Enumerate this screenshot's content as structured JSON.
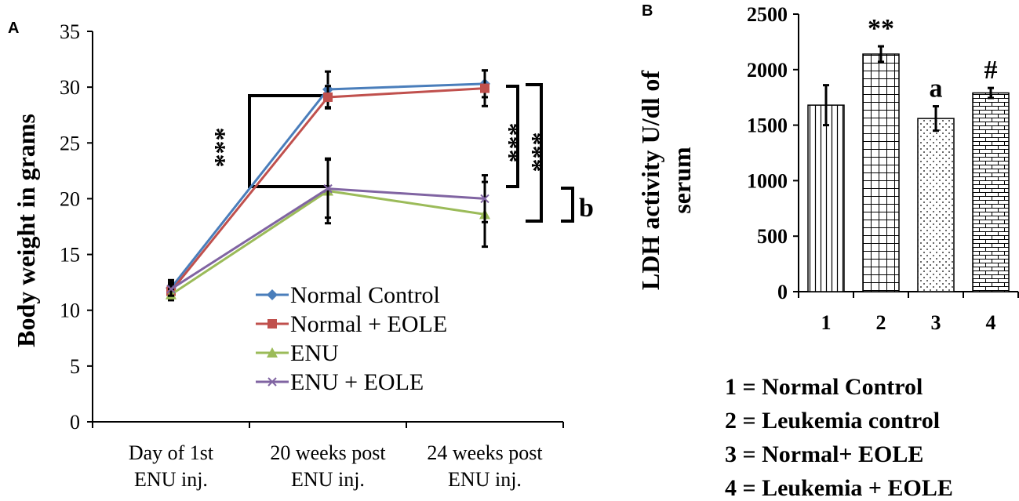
{
  "colors": {
    "normal_control": "#4a7ebb",
    "normal_eole": "#c0504d",
    "enu": "#9bbb59",
    "enu_eole": "#8064a2"
  },
  "chart_data": [
    {
      "type": "line",
      "panel": "A",
      "ylabel": "Body weight in grams",
      "ylim": [
        0,
        35
      ],
      "yticks": [
        0,
        5,
        10,
        15,
        20,
        25,
        30,
        35
      ],
      "categories": [
        [
          "Day of 1st",
          "ENU inj."
        ],
        [
          "20 weeks post",
          "ENU inj."
        ],
        [
          "24 weeks post",
          "ENU inj."
        ]
      ],
      "series": [
        {
          "name": "Normal Control",
          "marker": "diamond",
          "values": [
            12.0,
            29.8,
            30.3
          ],
          "errors": [
            0.7,
            1.6,
            1.2
          ]
        },
        {
          "name": "Normal + EOLE",
          "marker": "square",
          "values": [
            11.7,
            29.1,
            29.9
          ],
          "errors": [
            0.6,
            1.0,
            1.6
          ]
        },
        {
          "name": "ENU",
          "marker": "triangle",
          "values": [
            11.4,
            20.7,
            18.6
          ],
          "errors": [
            0.5,
            2.9,
            2.9
          ]
        },
        {
          "name": "ENU + EOLE",
          "marker": "x",
          "values": [
            11.9,
            20.9,
            20.0
          ],
          "errors": [
            0.6,
            2.6,
            2.1
          ]
        }
      ],
      "annotations": [
        "***",
        "***",
        "***",
        "b"
      ]
    },
    {
      "type": "bar",
      "panel": "B",
      "ylabel_line1": "LDH activity U/dl of",
      "ylabel_line2": "serum",
      "ylim": [
        0,
        2500
      ],
      "yticks": [
        0,
        500,
        1000,
        1500,
        2000,
        2500
      ],
      "categories": [
        "1",
        "2",
        "3",
        "4"
      ],
      "values": [
        1680,
        2140,
        1560,
        1790
      ],
      "errors": [
        180,
        70,
        110,
        45
      ],
      "labels": [
        "",
        "**",
        "a",
        "#"
      ],
      "patterns": [
        "vertical-lines",
        "grid",
        "dots",
        "bricks"
      ],
      "key": [
        "1 = Normal Control",
        "2 = Leukemia control",
        "3 = Normal+ EOLE",
        "4 = Leukemia + EOLE"
      ]
    }
  ]
}
